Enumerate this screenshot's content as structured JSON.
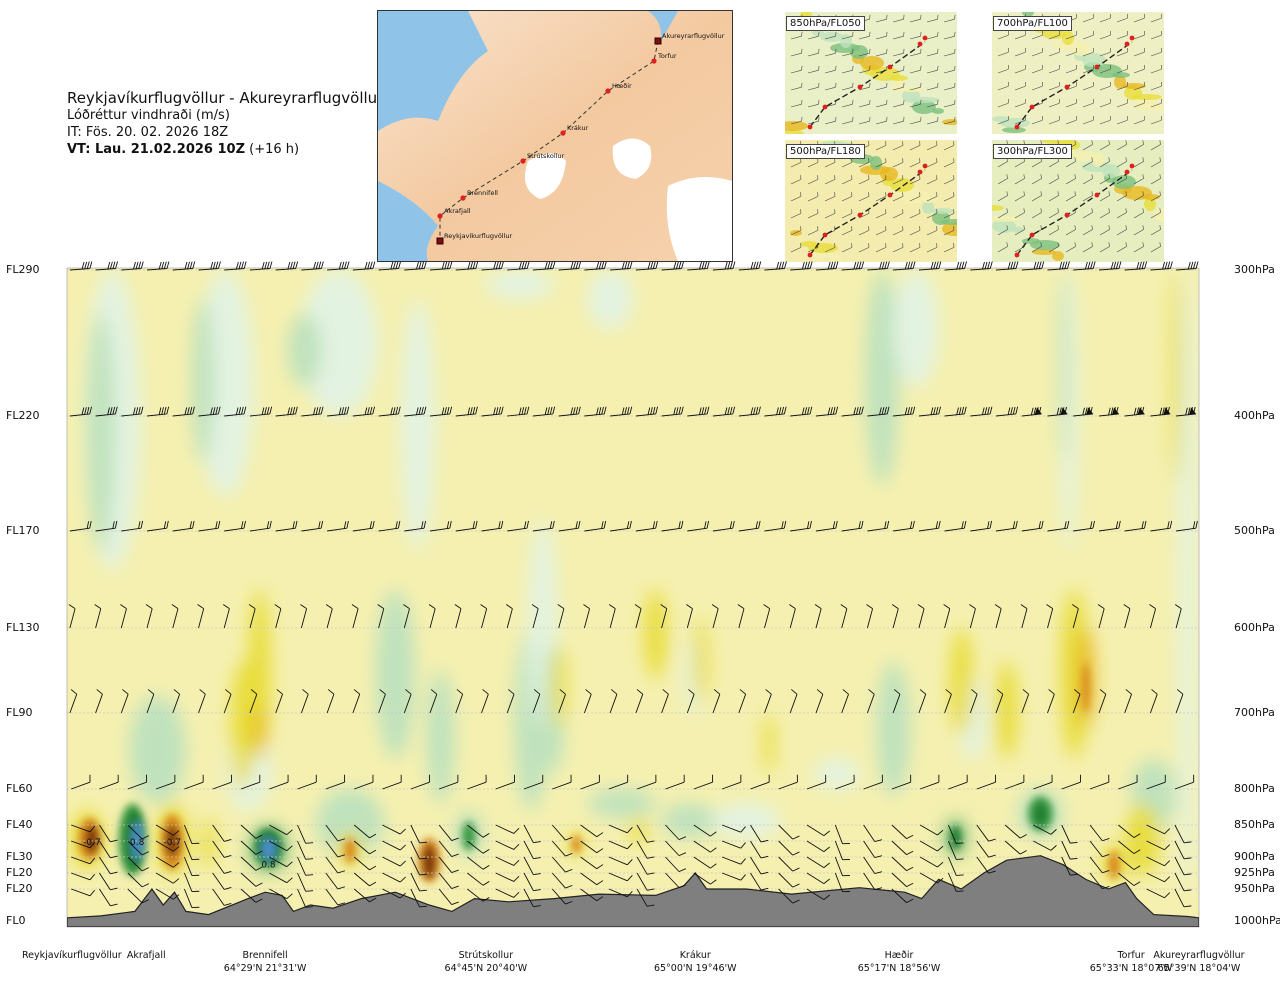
{
  "title": {
    "main": "Reykjavíkurflugvöllur - Akureyrarflugvöllur",
    "variable": "Lóðréttur vindhraði (m/s)",
    "it": "IT: Fös. 20. 02. 2026 18Z",
    "vt_bold": "VT: Lau. 21.02.2026 10Z",
    "vt_suffix": "(+16 h)"
  },
  "map": {
    "places": [
      {
        "name": "Akureyrarflugvöllur",
        "marker": "square"
      },
      {
        "name": "Torfur",
        "marker": "dot"
      },
      {
        "name": "Hæðir",
        "marker": "dot"
      },
      {
        "name": "Krákur",
        "marker": "dot"
      },
      {
        "name": "Strútskollur",
        "marker": "dot"
      },
      {
        "name": "Brennifell",
        "marker": "dot"
      },
      {
        "name": "Akrafjall",
        "marker": "dot"
      },
      {
        "name": "Reykjavíkurflugvöllur",
        "marker": "square"
      }
    ]
  },
  "mini_maps": [
    {
      "label": "850hPa/FL050",
      "bg": "#e9f0c8"
    },
    {
      "label": "700hPa/FL100",
      "bg": "#eef0c4"
    },
    {
      "label": "500hPa/FL180",
      "bg": "#f3ecae"
    },
    {
      "label": "300hPa/FL300",
      "bg": "#e6eebf"
    }
  ],
  "chart_data": {
    "type": "heatmap",
    "title": "Lóðréttur vindhraði (m/s)",
    "y_levels": [
      {
        "fl": "FL290",
        "hpa": "300hPa"
      },
      {
        "fl": "FL220",
        "hpa": "400hPa"
      },
      {
        "fl": "FL170",
        "hpa": "500hPa"
      },
      {
        "fl": "FL130",
        "hpa": "600hPa"
      },
      {
        "fl": "FL90",
        "hpa": "700hPa"
      },
      {
        "fl": "FL60",
        "hpa": "800hPa"
      },
      {
        "fl": "FL40",
        "hpa": "850hPa"
      },
      {
        "fl": "FL30",
        "hpa": "900hPa"
      },
      {
        "fl": "FL20",
        "hpa": "925hPa"
      },
      {
        "fl": "FL20",
        "hpa": "950hPa"
      },
      {
        "fl": "FL0",
        "hpa": "1000hPa"
      }
    ],
    "locations": [
      {
        "name": "Reykjavíkurflugvöllur",
        "coord": "",
        "pos": 0.0
      },
      {
        "name": "Akrafjall",
        "coord": "",
        "pos": 0.07
      },
      {
        "name": "Brennifell",
        "coord": "64°29'N 21°31'W",
        "pos": 0.175
      },
      {
        "name": "Strútskollur",
        "coord": "64°45'N 20°40'W",
        "pos": 0.37
      },
      {
        "name": "Krákur",
        "coord": "65°00'N 19°46'W",
        "pos": 0.555
      },
      {
        "name": "Hæðir",
        "coord": "65°17'N 18°56'W",
        "pos": 0.735
      },
      {
        "name": "Torfur",
        "coord": "65°33'N 18°07'W",
        "pos": 0.94
      },
      {
        "name": "Akureyrarflugvöllur",
        "coord": "65°39'N 18°04'W",
        "pos": 1.0
      }
    ],
    "field_annotations": [
      {
        "text": "-0.7",
        "pos": 0.022,
        "level": 875
      },
      {
        "text": "0.8",
        "pos": 0.062,
        "level": 875
      },
      {
        "text": "-0.7",
        "pos": 0.093,
        "level": 875
      },
      {
        "text": "0.8",
        "pos": 0.178,
        "level": 910
      }
    ],
    "terrain_pressure_hpa": [
      [
        0.0,
        995
      ],
      [
        0.03,
        992
      ],
      [
        0.06,
        985
      ],
      [
        0.075,
        950
      ],
      [
        0.085,
        975
      ],
      [
        0.095,
        955
      ],
      [
        0.105,
        985
      ],
      [
        0.125,
        990
      ],
      [
        0.16,
        965
      ],
      [
        0.175,
        955
      ],
      [
        0.19,
        960
      ],
      [
        0.2,
        985
      ],
      [
        0.215,
        975
      ],
      [
        0.235,
        980
      ],
      [
        0.26,
        965
      ],
      [
        0.29,
        955
      ],
      [
        0.32,
        975
      ],
      [
        0.34,
        985
      ],
      [
        0.36,
        965
      ],
      [
        0.39,
        970
      ],
      [
        0.43,
        965
      ],
      [
        0.47,
        958
      ],
      [
        0.52,
        960
      ],
      [
        0.545,
        945
      ],
      [
        0.555,
        925
      ],
      [
        0.565,
        950
      ],
      [
        0.6,
        950
      ],
      [
        0.64,
        958
      ],
      [
        0.7,
        948
      ],
      [
        0.74,
        955
      ],
      [
        0.755,
        965
      ],
      [
        0.77,
        935
      ],
      [
        0.79,
        950
      ],
      [
        0.81,
        925
      ],
      [
        0.83,
        905
      ],
      [
        0.86,
        898
      ],
      [
        0.88,
        912
      ],
      [
        0.9,
        935
      ],
      [
        0.92,
        950
      ],
      [
        0.935,
        940
      ],
      [
        0.945,
        965
      ],
      [
        0.96,
        990
      ],
      [
        0.99,
        993
      ],
      [
        1.0,
        995
      ]
    ],
    "wind_barb_levels_hpa": [
      300,
      400,
      500,
      600,
      700,
      800,
      850,
      875,
      900,
      925,
      950
    ],
    "colorscale": [
      "#1f5fa8",
      "#4c8fc8",
      "#1d7a2e",
      "#3a9a44",
      "#7cc07e",
      "#bfe2bd",
      "#e3f3e1",
      "#f5f0b0",
      "#e8dd3a",
      "#e7b820",
      "#d98a1f",
      "#b85a17",
      "#7a3810"
    ]
  },
  "colors": {
    "terrain": "#7f7f7f",
    "background_field": "#f5f0b0",
    "route": "#333333",
    "marker": "#e0201e"
  }
}
